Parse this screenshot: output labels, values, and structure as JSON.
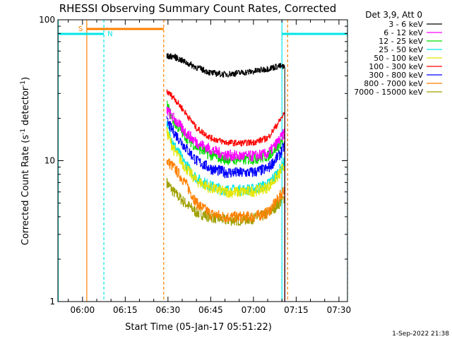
{
  "chart_data": {
    "type": "line",
    "title": "RHESSI Observing Summary Count Rates, Corrected",
    "xlabel": "Start Time (05-Jan-17 05:51:22)",
    "ylabel": "Corrected Count Rate (s",
    "ylabel_exp1": "-1",
    "ylabel_mid": " detector",
    "ylabel_exp2": "-1",
    "ylabel_end": ")",
    "y_scale": "log",
    "ylim": [
      1,
      100
    ],
    "y_ticks": [
      {
        "value": 1,
        "label": "1"
      },
      {
        "value": 10,
        "label": "10"
      },
      {
        "value": 100,
        "label": "100"
      }
    ],
    "x_units": "minutes of day (UT)",
    "xlim": [
      351.37,
      453
    ],
    "x_ticks": [
      {
        "value": 360,
        "label": "06:00"
      },
      {
        "value": 375,
        "label": "06:15"
      },
      {
        "value": 390,
        "label": "06:30"
      },
      {
        "value": 405,
        "label": "06:45"
      },
      {
        "value": 420,
        "label": "07:00"
      },
      {
        "value": 435,
        "label": "07:15"
      },
      {
        "value": 450,
        "label": "07:30"
      }
    ],
    "legend_header": "Det 3,9, Att 0",
    "legend_position": "right",
    "timestamp": "1-Sep-2022 21:38",
    "data_start": 389.5,
    "data_end": 431,
    "series": [
      {
        "name": "3 - 6 keV",
        "color": "#000000",
        "values": [
          [
            389.5,
            55
          ],
          [
            392,
            55
          ],
          [
            396,
            50
          ],
          [
            400,
            46
          ],
          [
            405,
            42
          ],
          [
            410,
            41
          ],
          [
            415,
            42
          ],
          [
            420,
            43
          ],
          [
            425,
            45
          ],
          [
            429,
            47
          ],
          [
            431,
            46
          ]
        ]
      },
      {
        "name": "6 - 12 keV",
        "color": "#ff00ff",
        "values": [
          [
            389.5,
            23
          ],
          [
            392,
            20
          ],
          [
            396,
            16
          ],
          [
            400,
            13.5
          ],
          [
            405,
            12
          ],
          [
            410,
            11
          ],
          [
            415,
            10.8
          ],
          [
            420,
            10.8
          ],
          [
            425,
            11.2
          ],
          [
            429,
            14
          ],
          [
            431,
            16
          ]
        ]
      },
      {
        "name": "12 - 25 keV",
        "color": "#00dd00",
        "values": [
          [
            389.5,
            25
          ],
          [
            392,
            19
          ],
          [
            396,
            15
          ],
          [
            400,
            12.5
          ],
          [
            405,
            11
          ],
          [
            410,
            10.3
          ],
          [
            415,
            10.2
          ],
          [
            420,
            10.3
          ],
          [
            425,
            10.8
          ],
          [
            429,
            13
          ],
          [
            431,
            15
          ]
        ]
      },
      {
        "name": "25 - 50 keV",
        "color": "#00e5e5",
        "values": [
          [
            389.5,
            18
          ],
          [
            392,
            13
          ],
          [
            396,
            9.5
          ],
          [
            400,
            7.5
          ],
          [
            405,
            6.6
          ],
          [
            410,
            6.2
          ],
          [
            415,
            6.2
          ],
          [
            420,
            6.3
          ],
          [
            425,
            6.8
          ],
          [
            429,
            8.5
          ],
          [
            431,
            10
          ]
        ]
      },
      {
        "name": "50 - 100 keV",
        "color": "#e6e600",
        "values": [
          [
            389.5,
            16
          ],
          [
            392,
            12
          ],
          [
            396,
            9
          ],
          [
            400,
            7.2
          ],
          [
            405,
            6.4
          ],
          [
            410,
            6
          ],
          [
            415,
            6
          ],
          [
            420,
            6.1
          ],
          [
            425,
            6.5
          ],
          [
            429,
            8
          ],
          [
            431,
            9.5
          ]
        ]
      },
      {
        "name": "100 - 300 keV",
        "color": "#ff0000",
        "values": [
          [
            389.5,
            31
          ],
          [
            392,
            28
          ],
          [
            396,
            22
          ],
          [
            400,
            17
          ],
          [
            405,
            14.5
          ],
          [
            410,
            13.5
          ],
          [
            415,
            13.3
          ],
          [
            420,
            13.5
          ],
          [
            425,
            14.5
          ],
          [
            429,
            19
          ],
          [
            431,
            22
          ]
        ]
      },
      {
        "name": "300 - 800 keV",
        "color": "#0000ff",
        "values": [
          [
            389.5,
            19
          ],
          [
            392,
            16
          ],
          [
            396,
            12.5
          ],
          [
            400,
            10
          ],
          [
            405,
            8.8
          ],
          [
            410,
            8.3
          ],
          [
            415,
            8.2
          ],
          [
            420,
            8.3
          ],
          [
            425,
            8.8
          ],
          [
            429,
            11
          ],
          [
            431,
            13
          ]
        ]
      },
      {
        "name": "800 - 7000 keV",
        "color": "#ff8000",
        "values": [
          [
            389.5,
            10
          ],
          [
            392,
            9
          ],
          [
            396,
            7
          ],
          [
            400,
            5
          ],
          [
            405,
            4.2
          ],
          [
            410,
            4
          ],
          [
            415,
            4
          ],
          [
            420,
            4
          ],
          [
            425,
            4.3
          ],
          [
            429,
            5.5
          ],
          [
            431,
            6.5
          ]
        ]
      },
      {
        "name": "7000 - 15000 keV",
        "color": "#a0a000",
        "values": [
          [
            389.5,
            7
          ],
          [
            392,
            6
          ],
          [
            396,
            5
          ],
          [
            400,
            4.3
          ],
          [
            405,
            4
          ],
          [
            410,
            3.8
          ],
          [
            415,
            3.8
          ],
          [
            420,
            3.9
          ],
          [
            425,
            4.2
          ],
          [
            429,
            5
          ],
          [
            431,
            5.5
          ]
        ]
      }
    ],
    "annotations": {
      "saa_label": "S",
      "night_label": "N",
      "saa_color": "#ff8000",
      "night_color": "#00e5e5",
      "saa_markers": [
        361.5,
        388.5,
        432
      ],
      "night_markers": [
        351.5,
        367.5,
        430,
        453
      ],
      "saa_intervals": [
        [
          361.5,
          388.5
        ]
      ],
      "night_intervals": [
        [
          351.5,
          367.5
        ],
        [
          430,
          453
        ]
      ]
    }
  }
}
